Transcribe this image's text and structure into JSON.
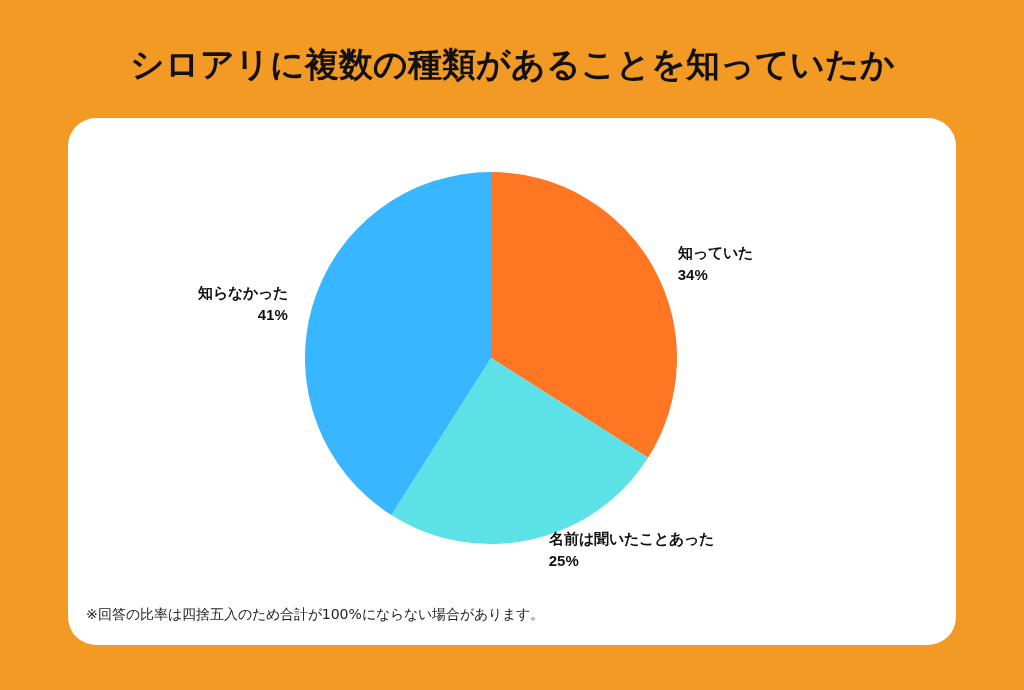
{
  "chart_data": {
    "type": "pie",
    "title": "シロアリに複数の種類があることを知っていたか",
    "categories": [
      "知っていた",
      "名前は聞いたことあった",
      "知らなかった"
    ],
    "values": [
      34,
      25,
      41
    ],
    "value_labels": [
      "34%",
      "25%",
      "41%"
    ],
    "colors": [
      "#ff7722",
      "#5ce1e6",
      "#38b6ff"
    ],
    "legend": false,
    "annotations": [
      "※回答の比率は四捨五入のため合計が100%にならない場合があります。"
    ]
  }
}
